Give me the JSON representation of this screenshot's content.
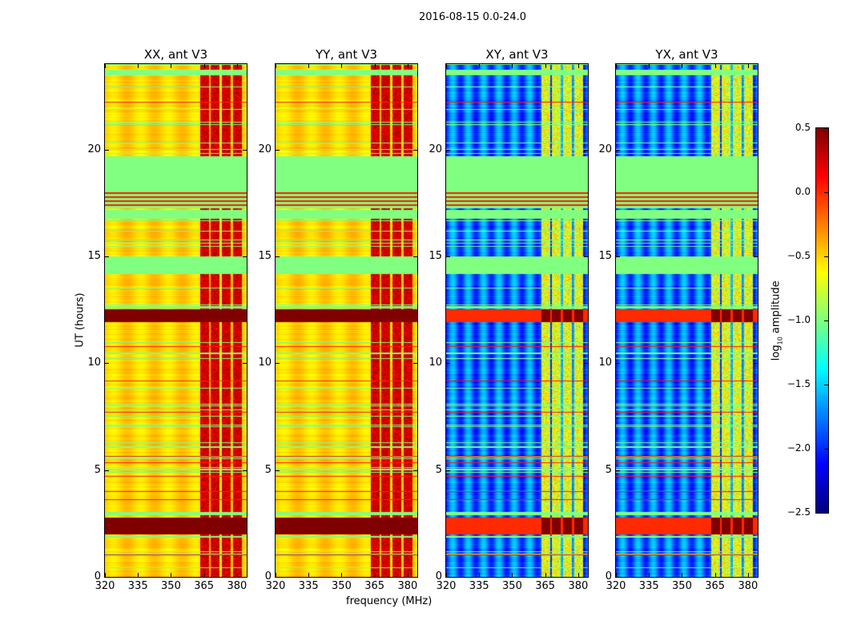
{
  "chart_data": {
    "type": "heatmap",
    "title": "2016-08-15 0.0-24.0",
    "xlabel": "frequency (MHz)",
    "ylabel": "UT (hours)",
    "xlim": [
      320,
      384.4
    ],
    "ylim": [
      0,
      24
    ],
    "xticks": [
      "320",
      "335",
      "350",
      "365",
      "380"
    ],
    "xtick_values": [
      320,
      335,
      350,
      365,
      380
    ],
    "yticks": [
      "0",
      "5",
      "10",
      "15",
      "20"
    ],
    "ytick_values": [
      0,
      5,
      10,
      15,
      20
    ],
    "colorbar": {
      "label": "log10 amplitude",
      "label_main": "log",
      "label_sub": "10",
      "label_rest": " amplitude",
      "range": [
        -2.5,
        0.5
      ],
      "ticks": [
        "0.5",
        "0.0",
        "−0.5",
        "−1.0",
        "−1.5",
        "−2.0",
        "−2.5"
      ],
      "tick_values": [
        0.5,
        0,
        -0.5,
        -1,
        -1.5,
        -2,
        -2.5
      ],
      "colormap": "jet"
    },
    "panels": [
      {
        "title": "XX, ant V3",
        "base_level": -0.5,
        "rfi_level": 0.2
      },
      {
        "title": "YY, ant V3",
        "base_level": -0.5,
        "rfi_level": 0.2
      },
      {
        "title": "XY, ant V3",
        "base_level": -1.8,
        "rfi_level": -0.8
      },
      {
        "title": "YX, ant V3",
        "base_level": -1.8,
        "rfi_level": -0.8
      }
    ],
    "flagged_value": -1.0,
    "flagged_time_ranges_hours": [
      [
        18.1,
        19.7
      ],
      [
        16.8,
        17.2
      ],
      [
        23.5,
        23.75
      ],
      [
        14.2,
        15.0
      ],
      [
        12.6,
        12.7
      ],
      [
        2.9,
        3.0
      ]
    ],
    "strong_time_ranges_hours": [
      [
        11.95,
        12.55
      ],
      [
        2.0,
        2.8
      ]
    ],
    "rfi_channels_mhz": [
      [
        363,
        367
      ],
      [
        368,
        372
      ],
      [
        373,
        377
      ],
      [
        378,
        382
      ]
    ]
  }
}
